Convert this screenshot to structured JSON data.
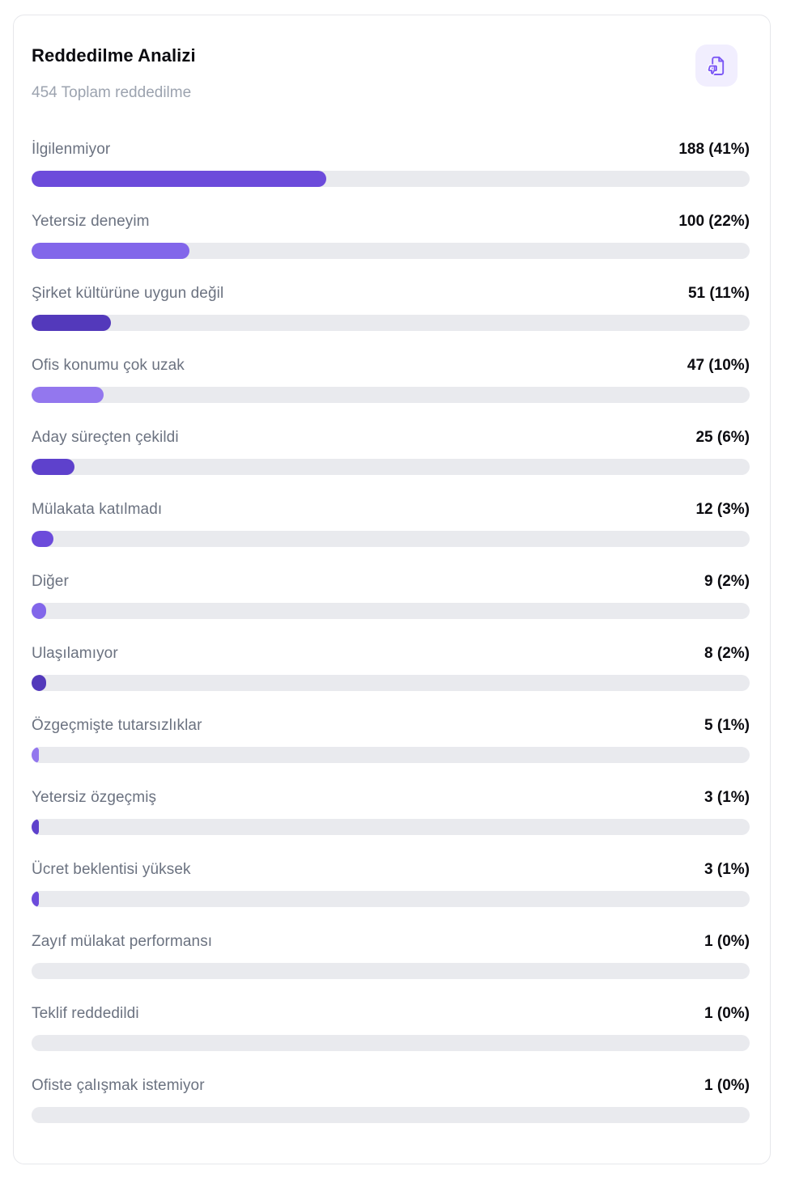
{
  "card": {
    "title": "Reddedilme Analizi",
    "subtitle": "454 Toplam reddedilme",
    "total_rejections": 454,
    "icon": "document-thumbs-down-icon",
    "colors": {
      "accent_stroke": "#7c58f5",
      "icon_background": "#f1eefe",
      "track": "#e9eaee",
      "label_gray": "#6b7280",
      "subtitle_gray": "#9ca3af",
      "value_black": "#0b0b10"
    }
  },
  "palette": [
    "#6C4BDB",
    "#8266EA",
    "#5339BB",
    "#9377EE",
    "#5E41CC"
  ],
  "rows": [
    {
      "label": "İlgilenmiyor",
      "count": 188,
      "pct": 41,
      "display": "188 (41%)",
      "color": "#6C4BDB"
    },
    {
      "label": "Yetersiz deneyim",
      "count": 100,
      "pct": 22,
      "display": "100 (22%)",
      "color": "#8266EA"
    },
    {
      "label": "Şirket kültürüne uygun değil",
      "count": 51,
      "pct": 11,
      "display": "51 (11%)",
      "color": "#5339BB"
    },
    {
      "label": "Ofis konumu çok uzak",
      "count": 47,
      "pct": 10,
      "display": "47 (10%)",
      "color": "#9377EE"
    },
    {
      "label": "Aday süreçten çekildi",
      "count": 25,
      "pct": 6,
      "display": "25 (6%)",
      "color": "#5E41CC"
    },
    {
      "label": "Mülakata katılmadı",
      "count": 12,
      "pct": 3,
      "display": "12 (3%)",
      "color": "#6C4BDB"
    },
    {
      "label": "Diğer",
      "count": 9,
      "pct": 2,
      "display": "9 (2%)",
      "color": "#8266EA"
    },
    {
      "label": "Ulaşılamıyor",
      "count": 8,
      "pct": 2,
      "display": "8 (2%)",
      "color": "#5339BB"
    },
    {
      "label": "Özgeçmişte tutarsızlıklar",
      "count": 5,
      "pct": 1,
      "display": "5 (1%)",
      "color": "#9377EE"
    },
    {
      "label": "Yetersiz özgeçmiş",
      "count": 3,
      "pct": 1,
      "display": "3 (1%)",
      "color": "#5E41CC"
    },
    {
      "label": "Ücret beklentisi yüksek",
      "count": 3,
      "pct": 1,
      "display": "3 (1%)",
      "color": "#6C4BDB"
    },
    {
      "label": "Zayıf mülakat performansı",
      "count": 1,
      "pct": 0,
      "display": "1 (0%)",
      "color": "#8266EA"
    },
    {
      "label": "Teklif reddedildi",
      "count": 1,
      "pct": 0,
      "display": "1 (0%)",
      "color": "#5339BB"
    },
    {
      "label": "Ofiste çalışmak istemiyor",
      "count": 1,
      "pct": 0,
      "display": "1 (0%)",
      "color": "#9377EE"
    }
  ],
  "chart_data": {
    "type": "bar",
    "orientation": "horizontal",
    "title": "Reddedilme Analizi",
    "subtitle": "454 Toplam reddedilme",
    "total": 454,
    "categories": [
      "İlgilenmiyor",
      "Yetersiz deneyim",
      "Şirket kültürüne uygun değil",
      "Ofis konumu çok uzak",
      "Aday süreçten çekildi",
      "Mülakata katılmadı",
      "Diğer",
      "Ulaşılamıyor",
      "Özgeçmişte tutarsızlıklar",
      "Yetersiz özgeçmiş",
      "Ücret beklentisi yüksek",
      "Zayıf mülakat performansı",
      "Teklif reddedildi",
      "Ofiste çalışmak istemiyor"
    ],
    "values": [
      188,
      100,
      51,
      47,
      25,
      12,
      9,
      8,
      5,
      3,
      3,
      1,
      1,
      1
    ],
    "percentages": [
      41,
      22,
      11,
      10,
      6,
      3,
      2,
      2,
      1,
      1,
      1,
      0,
      0,
      0
    ],
    "value_labels": [
      "188 (41%)",
      "100 (22%)",
      "51 (11%)",
      "47 (10%)",
      "25 (6%)",
      "12 (3%)",
      "9 (2%)",
      "8 (2%)",
      "5 (1%)",
      "3 (1%)",
      "3 (1%)",
      "1 (0%)",
      "1 (0%)",
      "1 (0%)"
    ],
    "xlabel": "",
    "ylabel": "",
    "xlim": [
      0,
      100
    ],
    "grid": false,
    "legend": false
  }
}
